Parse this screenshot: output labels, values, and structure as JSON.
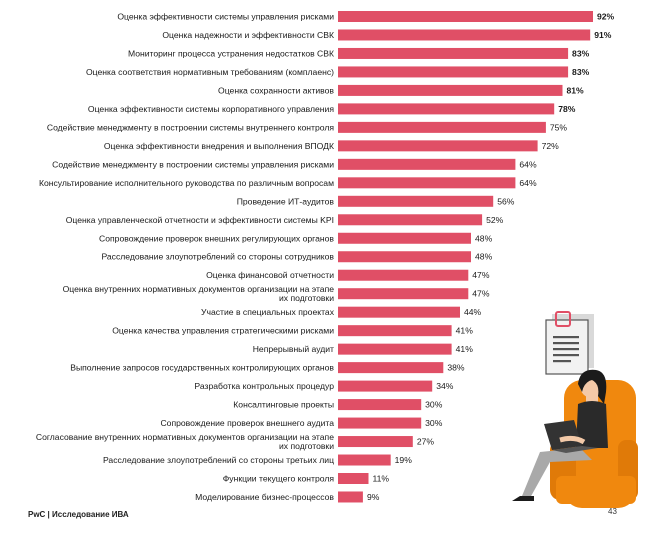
{
  "chart_data": {
    "type": "bar",
    "orientation": "horizontal",
    "categories": [
      "Оценка эффективности системы управления рисками",
      "Оценка надежности и эффективности СВК",
      "Мониторинг процесса устранения недостатков СВК",
      "Оценка соответствия нормативным требованиям (комплаенс)",
      "Оценка сохранности активов",
      "Оценка эффективности системы корпоративного управления",
      "Содействие менеджменту в построении системы внутреннего контроля",
      "Оценка эффективности внедрения и выполнения ВПОДК",
      "Содействие менеджменту в построении системы управления рисками",
      "Консультирование исполнительного руководства по различным вопросам",
      "Проведение ИТ-аудитов",
      "Оценка управленческой отчетности и эффективности системы KPI",
      "Сопровождение проверок внешних регулирующих органов",
      "Расследование злоупотреблений со стороны сотрудников",
      "Оценка финансовой отчетности",
      "Оценка внутренних нормативных документов организации на этапе их подготовки",
      "Участие в специальных проектах",
      "Оценка качества управления стратегическими рисками",
      "Непрерывный аудит",
      "Выполнение запросов государственных контролирующих органов",
      "Разработка контрольных процедур",
      "Консалтинговые проекты",
      "Сопровождение проверок внешнего аудита",
      "Согласование внутренних нормативных документов организации на этапе их подготовки",
      "Расследование злоупотреблений со стороны третьих лиц",
      "Функции текущего контроля",
      "Моделирование бизнес-процессов"
    ],
    "values": [
      92,
      91,
      83,
      83,
      81,
      78,
      75,
      72,
      64,
      64,
      56,
      52,
      48,
      48,
      47,
      47,
      44,
      41,
      41,
      38,
      34,
      30,
      30,
      27,
      19,
      11,
      9
    ],
    "value_labels": [
      "92%",
      "91%",
      "83%",
      "83%",
      "81%",
      "78%",
      "75%",
      "72%",
      "64%",
      "64%",
      "56%",
      "52%",
      "48%",
      "48%",
      "47%",
      "47%",
      "44%",
      "41%",
      "41%",
      "38%",
      "34%",
      "30%",
      "30%",
      "27%",
      "19%",
      "11%",
      "9%"
    ],
    "bold_labels_count": 6,
    "xlim": [
      0,
      100
    ],
    "grid": false,
    "legend": "none",
    "bar_color": "#e04f66"
  },
  "footer": "PwC | Исследование ИВА",
  "page_number": "43"
}
